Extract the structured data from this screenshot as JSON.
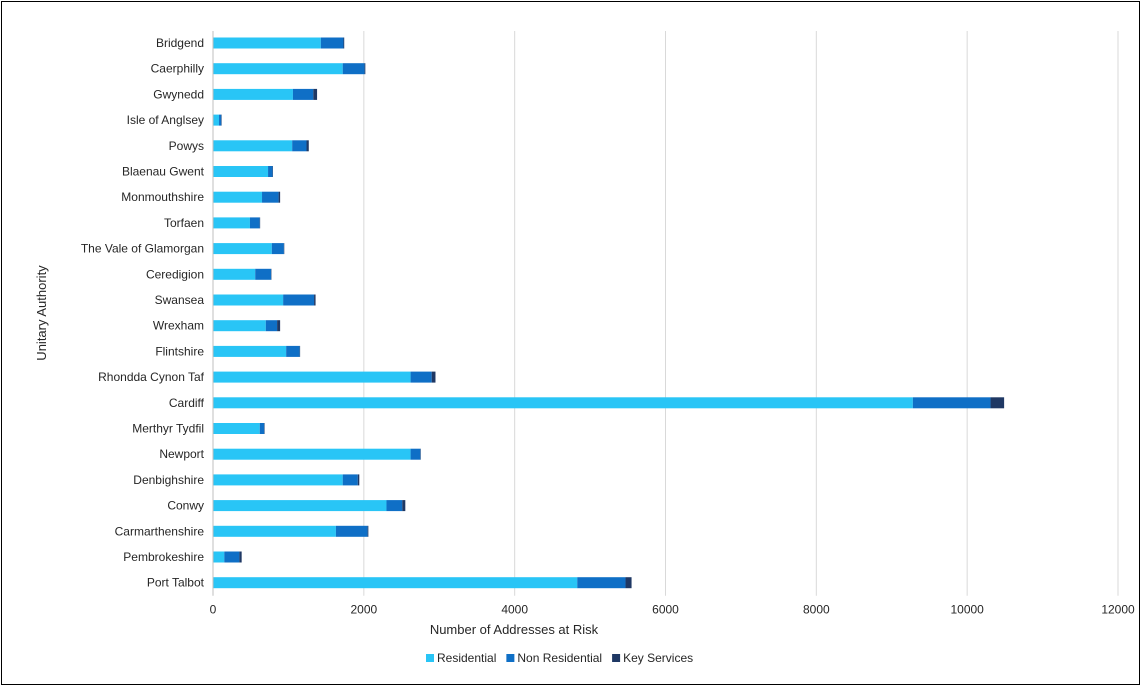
{
  "chart_data": {
    "type": "bar",
    "orientation": "horizontal",
    "stacked": true,
    "title": "",
    "xlabel": "Number  of Addresses at Risk",
    "ylabel": "Unitary Authority",
    "xlim": [
      0,
      12000
    ],
    "xticks": [
      0,
      2000,
      4000,
      6000,
      8000,
      10000,
      12000
    ],
    "grid": "vertical",
    "legend_position": "bottom",
    "categories": [
      "Bridgend",
      "Caerphilly",
      "Gwynedd",
      "Isle of Anglsey",
      "Powys",
      "Blaenau Gwent",
      "Monmouthshire",
      "Torfaen",
      "The Vale of Glamorgan",
      "Ceredigion",
      "Swansea",
      "Wrexham",
      "Flintshire",
      "Rhondda Cynon Taf",
      "Cardiff",
      "Merthyr Tydfil",
      "Newport",
      "Denbighshire",
      "Conwy",
      "Carmarthenshire",
      "Pembrokeshire",
      "Port Talbot"
    ],
    "series": [
      {
        "name": "Residential",
        "color": "#29C5F6",
        "values": [
          1430,
          1720,
          1060,
          80,
          1050,
          730,
          650,
          490,
          780,
          560,
          930,
          700,
          970,
          2620,
          9280,
          620,
          2620,
          1720,
          2300,
          1630,
          150,
          4830
        ]
      },
      {
        "name": "Non Residential",
        "color": "#0F6FC6",
        "values": [
          300,
          290,
          270,
          30,
          190,
          60,
          220,
          130,
          160,
          210,
          410,
          150,
          180,
          280,
          1030,
          60,
          130,
          200,
          210,
          420,
          200,
          640
        ]
      },
      {
        "name": "Key Services",
        "color": "#1F3864",
        "values": [
          10,
          10,
          50,
          5,
          30,
          5,
          20,
          5,
          5,
          5,
          20,
          40,
          5,
          50,
          180,
          5,
          5,
          20,
          40,
          10,
          30,
          80
        ]
      }
    ]
  }
}
